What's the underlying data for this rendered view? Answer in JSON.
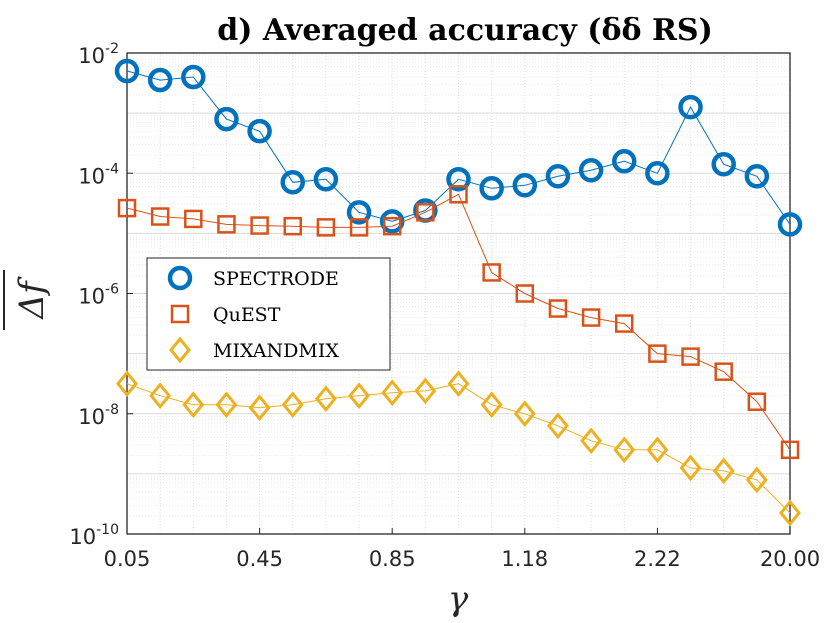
{
  "chart_data": {
    "type": "line",
    "title": "d) Averaged accuracy (δδ RS)",
    "xlabel": "γ",
    "ylabel": "Δf",
    "yscale": "log",
    "ylim_exponents": [
      -10,
      -2
    ],
    "y_tick_labels": [
      {
        "base": "10",
        "exp": "-2"
      },
      {
        "base": "10",
        "exp": "-4"
      },
      {
        "base": "10",
        "exp": "-6"
      },
      {
        "base": "10",
        "exp": "-8"
      },
      {
        "base": "10",
        "exp": "-10"
      }
    ],
    "x_tick_labels": [
      "0.05",
      "0.45",
      "0.85",
      "1.18",
      "2.22",
      "20.00"
    ],
    "x_tick_positions": [
      1,
      5,
      9,
      13,
      17,
      21
    ],
    "x_range": [
      1,
      21
    ],
    "grid": true,
    "legend_position": "center-left",
    "series": [
      {
        "name": "SPECTRODE",
        "color": "#0072BD",
        "marker": "circle",
        "x": [
          1,
          2,
          3,
          4,
          5,
          6,
          7,
          8,
          9,
          10,
          11,
          12,
          13,
          14,
          15,
          16,
          17,
          18,
          19,
          20,
          21
        ],
        "log10_values": [
          -2.3,
          -2.45,
          -2.4,
          -3.1,
          -3.3,
          -4.15,
          -4.1,
          -4.65,
          -4.8,
          -4.62,
          -4.1,
          -4.25,
          -4.2,
          -4.05,
          -3.95,
          -3.8,
          -4.0,
          -2.9,
          -3.85,
          -4.05,
          -4.85
        ]
      },
      {
        "name": "QuEST",
        "color": "#D95319",
        "marker": "square",
        "x": [
          1,
          2,
          3,
          4,
          5,
          6,
          7,
          8,
          9,
          10,
          11,
          12,
          13,
          14,
          15,
          16,
          17,
          18,
          19,
          20,
          21
        ],
        "log10_values": [
          -4.58,
          -4.72,
          -4.76,
          -4.85,
          -4.87,
          -4.88,
          -4.9,
          -4.9,
          -4.88,
          -4.65,
          -4.35,
          -5.65,
          -6.0,
          -6.25,
          -6.4,
          -6.5,
          -7.0,
          -7.05,
          -7.3,
          -7.8,
          -8.6
        ]
      },
      {
        "name": "MIXANDMIX",
        "color": "#EDB120",
        "marker": "diamond",
        "x": [
          1,
          2,
          3,
          4,
          5,
          6,
          7,
          8,
          9,
          10,
          11,
          12,
          13,
          14,
          15,
          16,
          17,
          18,
          19,
          20,
          21
        ],
        "log10_values": [
          -7.5,
          -7.7,
          -7.85,
          -7.85,
          -7.9,
          -7.85,
          -7.75,
          -7.7,
          -7.65,
          -7.62,
          -7.5,
          -7.85,
          -8.0,
          -8.2,
          -8.45,
          -8.6,
          -8.6,
          -8.9,
          -8.95,
          -9.1,
          -9.65
        ]
      }
    ]
  }
}
